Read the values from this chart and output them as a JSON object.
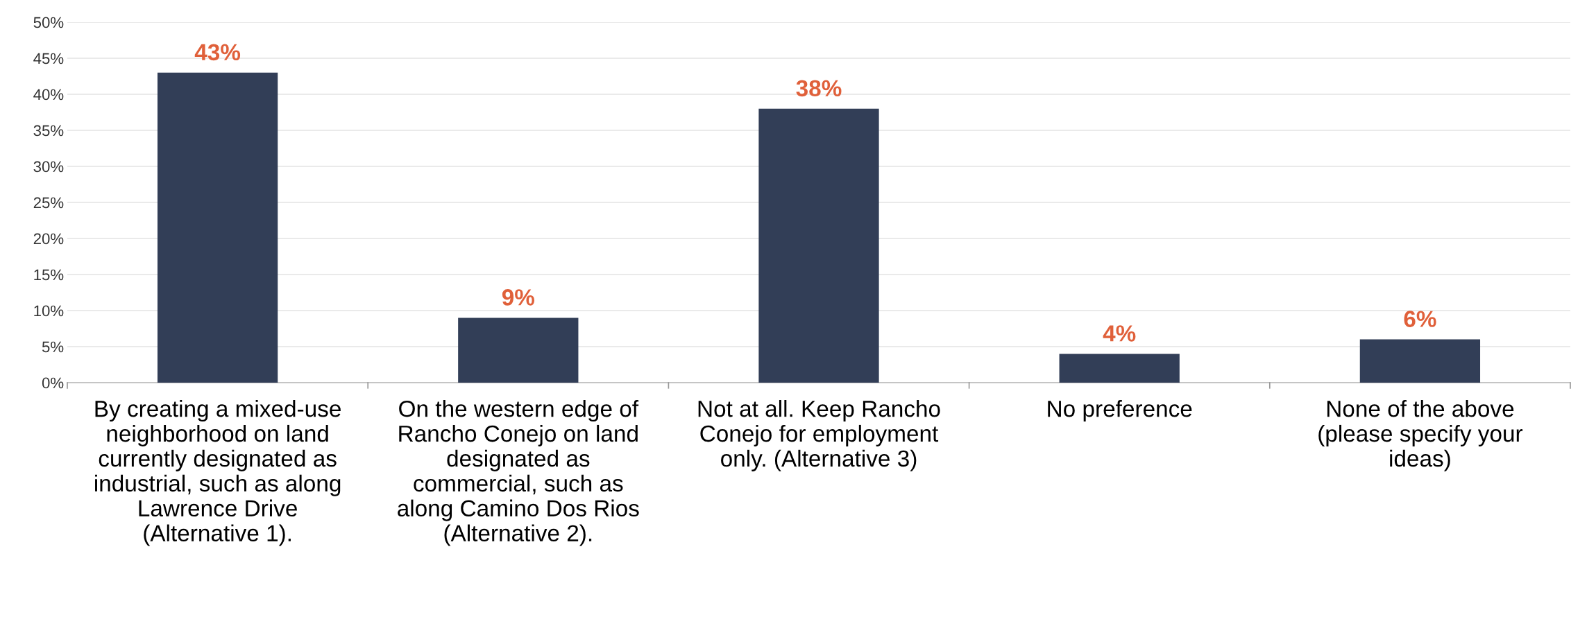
{
  "chart_data": {
    "type": "bar",
    "categories": [
      "By creating a mixed-use\nneighborhood on land\ncurrently designated as\nindustrial, such as along\nLawrence Drive\n(Alternative 1).",
      "On the western edge of\nRancho Conejo on land\ndesignated as\ncommercial, such as\nalong Camino Dos Rios\n(Alternative 2).",
      "Not at all. Keep Rancho\nConejo for employment\nonly. (Alternative 3)",
      "No preference",
      "None of the above\n(please specify your\nideas)"
    ],
    "values": [
      43,
      9,
      38,
      4,
      6
    ],
    "color": "#323e57",
    "value_labels": [
      "43%",
      "9%",
      "38%",
      "4%",
      "6%"
    ],
    "ylim": [
      0,
      50
    ],
    "yticks": [
      {
        "value": 0,
        "label": "0%"
      },
      {
        "value": 5,
        "label": "5%"
      },
      {
        "value": 10,
        "label": "10%"
      },
      {
        "value": 15,
        "label": "15%"
      },
      {
        "value": 20,
        "label": "20%"
      },
      {
        "value": 25,
        "label": "25%"
      },
      {
        "value": 30,
        "label": "30%"
      },
      {
        "value": 35,
        "label": "35%"
      },
      {
        "value": 40,
        "label": "40%"
      },
      {
        "value": 45,
        "label": "45%"
      },
      {
        "value": 50,
        "label": "50%"
      }
    ],
    "grid": "y",
    "legend": false
  }
}
